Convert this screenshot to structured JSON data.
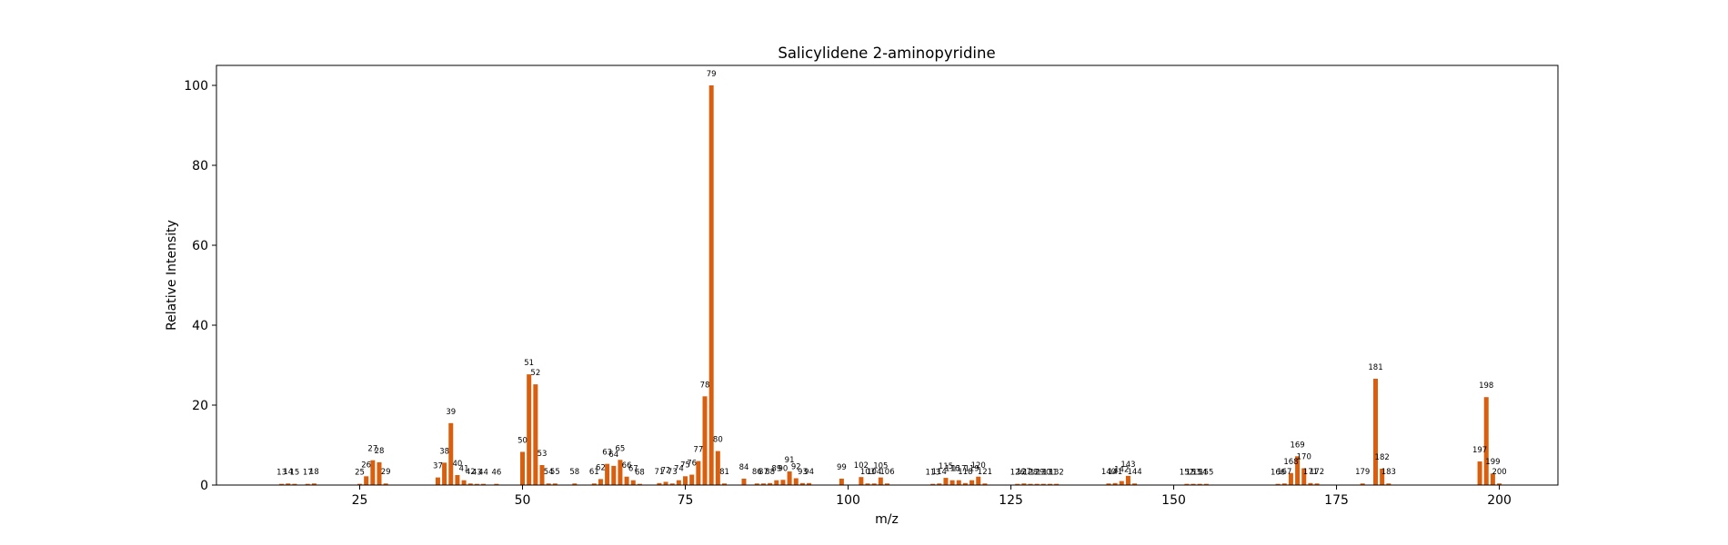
{
  "chart_data": {
    "type": "bar",
    "title": "Salicylidene 2-aminopyridine",
    "xlabel": "m/z",
    "ylabel": "Relative Intensity",
    "xlim": [
      3,
      209
    ],
    "ylim": [
      0,
      105
    ],
    "xticks": [
      25,
      50,
      75,
      100,
      125,
      150,
      175,
      200
    ],
    "yticks": [
      0,
      20,
      40,
      60,
      80,
      100
    ],
    "bar_color": "#d95f0e",
    "grid": false,
    "peaks": [
      {
        "x": 13,
        "y": 0.3,
        "label": "13"
      },
      {
        "x": 14,
        "y": 0.4,
        "label": "14"
      },
      {
        "x": 15,
        "y": 0.3,
        "label": "15"
      },
      {
        "x": 17,
        "y": 0.3,
        "label": "17"
      },
      {
        "x": 18,
        "y": 0.4,
        "label": "18"
      },
      {
        "x": 25,
        "y": 0.3,
        "label": "25"
      },
      {
        "x": 26,
        "y": 2.2,
        "label": "26"
      },
      {
        "x": 27,
        "y": 6.2,
        "label": "27"
      },
      {
        "x": 28,
        "y": 5.7,
        "label": "28"
      },
      {
        "x": 29,
        "y": 0.4,
        "label": "29"
      },
      {
        "x": 37,
        "y": 1.9,
        "label": "37"
      },
      {
        "x": 38,
        "y": 5.6,
        "label": "38"
      },
      {
        "x": 39,
        "y": 15.5,
        "label": "39"
      },
      {
        "x": 40,
        "y": 2.5,
        "label": "40"
      },
      {
        "x": 41,
        "y": 1.2,
        "label": "41"
      },
      {
        "x": 42,
        "y": 0.4,
        "label": "42"
      },
      {
        "x": 43,
        "y": 0.3,
        "label": "43"
      },
      {
        "x": 44,
        "y": 0.3,
        "label": "44"
      },
      {
        "x": 46,
        "y": 0.3,
        "label": "46"
      },
      {
        "x": 50,
        "y": 8.3,
        "label": "50"
      },
      {
        "x": 51,
        "y": 27.7,
        "label": "51"
      },
      {
        "x": 52,
        "y": 25.2,
        "label": "52"
      },
      {
        "x": 53,
        "y": 5.0,
        "label": "53"
      },
      {
        "x": 54,
        "y": 0.4,
        "label": "54"
      },
      {
        "x": 55,
        "y": 0.4,
        "label": "55"
      },
      {
        "x": 58,
        "y": 0.4,
        "label": "58"
      },
      {
        "x": 61,
        "y": 0.4,
        "label": "61"
      },
      {
        "x": 62,
        "y": 1.5,
        "label": "62"
      },
      {
        "x": 63,
        "y": 5.3,
        "label": "63"
      },
      {
        "x": 64,
        "y": 4.8,
        "label": "64"
      },
      {
        "x": 65,
        "y": 6.3,
        "label": "65"
      },
      {
        "x": 66,
        "y": 2.1,
        "label": "66"
      },
      {
        "x": 67,
        "y": 1.2,
        "label": "67"
      },
      {
        "x": 68,
        "y": 0.3,
        "label": "68"
      },
      {
        "x": 71,
        "y": 0.5,
        "label": "71"
      },
      {
        "x": 72,
        "y": 0.8,
        "label": "72"
      },
      {
        "x": 73,
        "y": 0.4,
        "label": "73"
      },
      {
        "x": 74,
        "y": 1.2,
        "label": "74"
      },
      {
        "x": 75,
        "y": 2.2,
        "label": "75"
      },
      {
        "x": 76,
        "y": 2.6,
        "label": "76"
      },
      {
        "x": 77,
        "y": 6.0,
        "label": "77"
      },
      {
        "x": 78,
        "y": 22.2,
        "label": "78"
      },
      {
        "x": 79,
        "y": 100,
        "label": "79"
      },
      {
        "x": 80,
        "y": 8.5,
        "label": "80"
      },
      {
        "x": 81,
        "y": 0.4,
        "label": "81"
      },
      {
        "x": 84,
        "y": 1.6,
        "label": "84"
      },
      {
        "x": 86,
        "y": 0.4,
        "label": "86"
      },
      {
        "x": 87,
        "y": 0.4,
        "label": "87"
      },
      {
        "x": 88,
        "y": 0.5,
        "label": "88"
      },
      {
        "x": 89,
        "y": 1.2,
        "label": "89"
      },
      {
        "x": 90,
        "y": 1.3,
        "label": "90"
      },
      {
        "x": 91,
        "y": 3.4,
        "label": "91"
      },
      {
        "x": 92,
        "y": 1.7,
        "label": "92"
      },
      {
        "x": 93,
        "y": 0.5,
        "label": "93"
      },
      {
        "x": 94,
        "y": 0.5,
        "label": "94"
      },
      {
        "x": 99,
        "y": 1.6,
        "label": "99"
      },
      {
        "x": 102,
        "y": 2.0,
        "label": "102"
      },
      {
        "x": 103,
        "y": 0.4,
        "label": "103"
      },
      {
        "x": 104,
        "y": 0.4,
        "label": "104"
      },
      {
        "x": 105,
        "y": 1.9,
        "label": "105"
      },
      {
        "x": 106,
        "y": 0.4,
        "label": "106"
      },
      {
        "x": 113,
        "y": 0.3,
        "label": "113"
      },
      {
        "x": 114,
        "y": 0.4,
        "label": "114"
      },
      {
        "x": 115,
        "y": 1.8,
        "label": "115"
      },
      {
        "x": 116,
        "y": 1.2,
        "label": "116"
      },
      {
        "x": 117,
        "y": 1.2,
        "label": "117"
      },
      {
        "x": 118,
        "y": 0.5,
        "label": "118"
      },
      {
        "x": 119,
        "y": 1.2,
        "label": "119"
      },
      {
        "x": 120,
        "y": 2.1,
        "label": "120"
      },
      {
        "x": 121,
        "y": 0.4,
        "label": "121"
      },
      {
        "x": 126,
        "y": 0.3,
        "label": "126"
      },
      {
        "x": 127,
        "y": 0.4,
        "label": "127"
      },
      {
        "x": 128,
        "y": 0.3,
        "label": "128"
      },
      {
        "x": 129,
        "y": 0.3,
        "label": "129"
      },
      {
        "x": 130,
        "y": 0.3,
        "label": "130"
      },
      {
        "x": 131,
        "y": 0.3,
        "label": "131"
      },
      {
        "x": 132,
        "y": 0.3,
        "label": "132"
      },
      {
        "x": 140,
        "y": 0.4,
        "label": "140"
      },
      {
        "x": 141,
        "y": 0.5,
        "label": "141"
      },
      {
        "x": 142,
        "y": 1.0,
        "label": "142"
      },
      {
        "x": 143,
        "y": 2.3,
        "label": "143"
      },
      {
        "x": 144,
        "y": 0.4,
        "label": "144"
      },
      {
        "x": 152,
        "y": 0.3,
        "label": "152"
      },
      {
        "x": 153,
        "y": 0.3,
        "label": "153"
      },
      {
        "x": 154,
        "y": 0.3,
        "label": "154"
      },
      {
        "x": 155,
        "y": 0.3,
        "label": "155"
      },
      {
        "x": 166,
        "y": 0.3,
        "label": "166"
      },
      {
        "x": 167,
        "y": 0.4,
        "label": "167"
      },
      {
        "x": 168,
        "y": 3.0,
        "label": "168"
      },
      {
        "x": 169,
        "y": 7.2,
        "label": "169"
      },
      {
        "x": 170,
        "y": 4.2,
        "label": "170"
      },
      {
        "x": 171,
        "y": 0.5,
        "label": "171"
      },
      {
        "x": 172,
        "y": 0.4,
        "label": "172"
      },
      {
        "x": 179,
        "y": 0.4,
        "label": "179"
      },
      {
        "x": 181,
        "y": 26.6,
        "label": "181"
      },
      {
        "x": 182,
        "y": 4.1,
        "label": "182"
      },
      {
        "x": 183,
        "y": 0.4,
        "label": "183"
      },
      {
        "x": 197,
        "y": 5.9,
        "label": "197"
      },
      {
        "x": 198,
        "y": 22.0,
        "label": "198"
      },
      {
        "x": 199,
        "y": 2.9,
        "label": "199"
      },
      {
        "x": 200,
        "y": 0.4,
        "label": "200"
      }
    ]
  }
}
